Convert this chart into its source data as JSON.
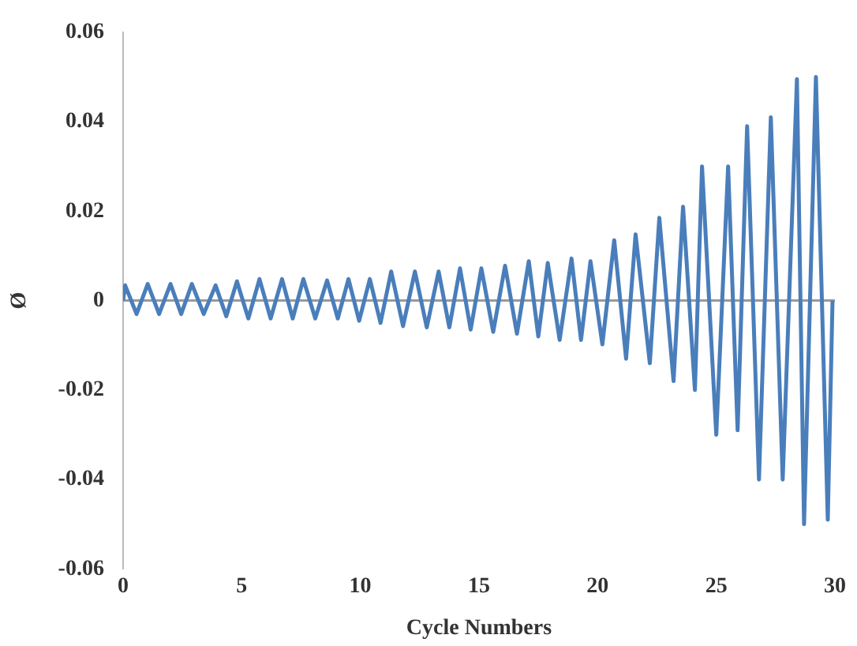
{
  "chart_data": {
    "type": "line",
    "xlabel": "Cycle Numbers",
    "ylabel": "Ø",
    "xlim": [
      0,
      30
    ],
    "xticks": [
      0,
      5,
      10,
      15,
      20,
      25,
      30
    ],
    "ylim": [
      -0.06,
      0.06
    ],
    "yticks": [
      -0.06,
      -0.04,
      -0.02,
      0,
      0.02,
      0.04,
      0.06
    ],
    "grid": false,
    "ref_lines": [
      {
        "axis": "y",
        "value": 0,
        "color": "#999999"
      }
    ],
    "legend": false,
    "marker": "none",
    "line_style": "solid",
    "series": [
      {
        "color": "#4a7ebb",
        "x": [
          0,
          0.09,
          0.57,
          1.04,
          1.52,
          2.0,
          2.45,
          2.9,
          3.4,
          3.9,
          4.35,
          4.8,
          5.28,
          5.75,
          6.22,
          6.7,
          7.15,
          7.6,
          8.1,
          8.6,
          9.05,
          9.5,
          9.95,
          10.4,
          10.85,
          11.3,
          11.8,
          12.3,
          12.8,
          13.3,
          13.75,
          14.2,
          14.65,
          15.1,
          15.6,
          16.1,
          16.6,
          17.1,
          17.5,
          17.9,
          18.4,
          18.9,
          19.3,
          19.7,
          20.2,
          20.7,
          21.2,
          21.6,
          22.2,
          22.6,
          23.2,
          23.6,
          24.1,
          24.4,
          25.0,
          25.5,
          25.9,
          26.3,
          26.8,
          27.3,
          27.8,
          28.4,
          28.7,
          29.2,
          29.7,
          29.9
        ],
        "values": [
          0,
          0.0034,
          -0.003,
          0.0037,
          -0.003,
          0.0037,
          -0.003,
          0.0037,
          -0.003,
          0.0034,
          -0.0035,
          0.0043,
          -0.004,
          0.0048,
          -0.004,
          0.0048,
          -0.004,
          0.0048,
          -0.004,
          0.0045,
          -0.004,
          0.0048,
          -0.0045,
          0.0048,
          -0.005,
          0.0065,
          -0.0057,
          0.0065,
          -0.006,
          0.0065,
          -0.006,
          0.0072,
          -0.0065,
          0.0072,
          -0.007,
          0.0078,
          -0.0074,
          0.0088,
          -0.008,
          0.0084,
          -0.0088,
          0.0094,
          -0.0088,
          0.0088,
          -0.0098,
          0.0135,
          -0.013,
          0.0148,
          -0.014,
          0.0185,
          -0.018,
          0.021,
          -0.02,
          0.03,
          -0.03,
          0.03,
          -0.029,
          0.039,
          -0.04,
          0.041,
          -0.04,
          0.0495,
          -0.05,
          0.05,
          -0.049,
          0
        ]
      }
    ]
  }
}
